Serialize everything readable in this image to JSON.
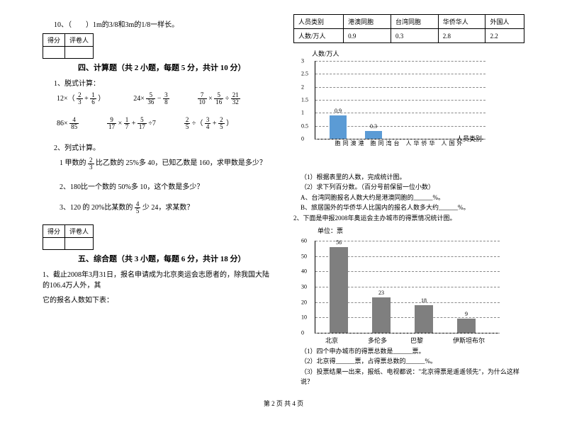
{
  "q10": "10、（　　）1m的3/8和3m的1/8一样长。",
  "scorebox": {
    "c1": "得分",
    "c2": "评卷人"
  },
  "section4": "四、计算题（共 2 小题，每题 5 分，共计 10 分）",
  "s4q1": "1、脱式计算：",
  "expr": {
    "a": {
      "pre": "12×（",
      "n1": "2",
      "d1": "3",
      "mid": " + ",
      "n2": "1",
      "d2": "6",
      "post": "）"
    },
    "b": {
      "pre": "24×",
      "n1": "5",
      "d1": "36",
      "mid": " − ",
      "n2": "3",
      "d2": "8"
    },
    "c": {
      "n1": "7",
      "d1": "10",
      "mid1": " × ",
      "n2": "5",
      "d2": "16",
      "mid2": " ÷ ",
      "n3": "21",
      "d3": "32"
    },
    "d": {
      "pre": "86×",
      "n1": "4",
      "d1": "85"
    },
    "e": {
      "n1": "9",
      "d1": "17",
      "mid1": " × ",
      "n2": "1",
      "d2": "7",
      "mid2": " + ",
      "n3": "5",
      "d3": "17",
      "post": " ÷7"
    },
    "f": {
      "n1": "2",
      "d1": "5",
      "mid1": " ÷（",
      "n2": "3",
      "d2": "4",
      "mid2": " + ",
      "n3": "2",
      "d3": "5",
      "post": "）"
    }
  },
  "s4q2": "2、列式计算。",
  "s4q2a": {
    "pre": "1 甲数的",
    "n": "2",
    "d": "3",
    "post": "比乙数的 25%多 40，已知乙数是 160，求甲数是多少？"
  },
  "s4q2b": "2、180比一个数的 50%多 10，这个数是多少？",
  "s4q2c": {
    "pre": "3、120 的 20%比某数的",
    "n": "4",
    "d": "5",
    "post": "少 24，求某数？"
  },
  "section5": "五、综合题（共 3 小题，每题 6 分，共计 18 分）",
  "s5q1a": "1、截止2008年3月31日，报名申请成为北京奥运会志愿者的，除我国大陆的106.4万人外，其",
  "s5q1b": "它的报名人数如下表：",
  "table": {
    "h1": "人员类别",
    "h2": "港澳同胞",
    "h3": "台湾同胞",
    "h4": "华侨华人",
    "h5": "外国人",
    "r1": "人数/万人",
    "v1": "0.9",
    "v2": "0.3",
    "v3": "2.8",
    "v4": "2.2"
  },
  "chart1": {
    "ylabel": "人数/万人",
    "xlabel": "人员类别",
    "ymax": 3.0,
    "ystep": 0.5,
    "ticks": [
      "0",
      "0.5",
      "1",
      "1.5",
      "2",
      "2.5",
      "3"
    ],
    "cats": [
      "港澳同胞",
      "台湾同胞",
      "华侨华人",
      "外国人"
    ],
    "vals": [
      0.9,
      0.3,
      null,
      null
    ],
    "bar_color": "#5b9bd5"
  },
  "s5q1c": "（1）根据表里的人数，完成统计图。",
  "s5q1d": "（2）求下列百分数。（百分号前保留一位小数）",
  "s5q1e": "A、台湾同胞报名人数大约是港澳同胞的______%。",
  "s5q1f": "B、旅居国外的华侨华人比国内的报名人数多大约______%。",
  "s5q2": "2、下面是申报2008年奥运会主办城市的得票情况统计图。",
  "chart2": {
    "ylabel": "单位：票",
    "ticks": [
      "0",
      "10",
      "20",
      "30",
      "40",
      "50",
      "60"
    ],
    "ymax": 60,
    "cats": [
      "北京",
      "多伦多",
      "巴黎",
      "伊斯坦布尔"
    ],
    "vals": [
      56,
      23,
      18,
      9
    ],
    "bar_color": "#7f7f7f"
  },
  "s5q2a": "（1）四个申办城市的得票总数是______票。",
  "s5q2b": "（2）北京得______票，占得票总数的______%。",
  "s5q2c": "（3）投票结果一出来，报纸、电视都说：\"北京得票是遥遥领先\"，为什么这样说？",
  "footer": "第 2 页 共 4 页"
}
